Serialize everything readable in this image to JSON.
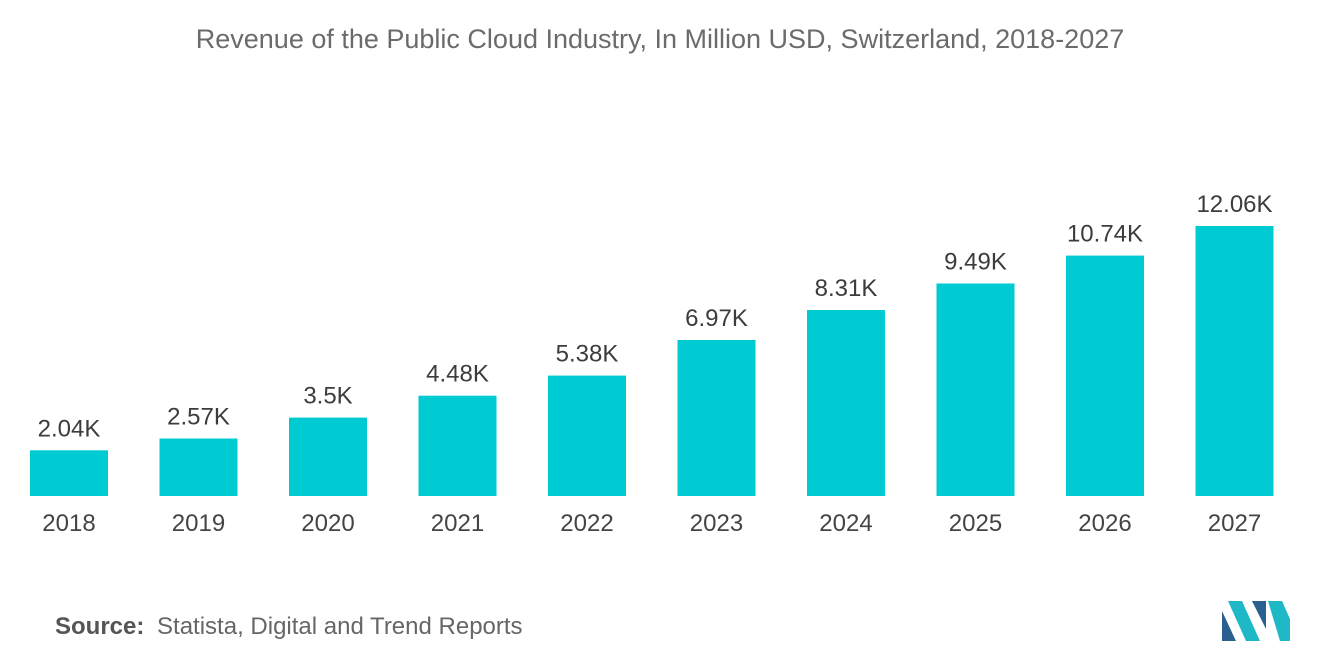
{
  "chart_data": {
    "type": "bar",
    "title": "Revenue of the Public Cloud Industry, In Million USD, Switzerland, 2018-2027",
    "categories": [
      "2018",
      "2019",
      "2020",
      "2021",
      "2022",
      "2023",
      "2024",
      "2025",
      "2026",
      "2027"
    ],
    "values": [
      2.04,
      2.57,
      3.5,
      4.48,
      5.38,
      6.97,
      8.31,
      9.49,
      10.74,
      12.06
    ],
    "value_labels": [
      "2.04K",
      "2.57K",
      "3.5K",
      "4.48K",
      "5.38K",
      "6.97K",
      "8.31K",
      "9.49K",
      "10.74K",
      "12.06K"
    ],
    "value_unit": "thousand million USD",
    "xlabel": "",
    "ylabel": "",
    "ylim": [
      0,
      12.06
    ],
    "grid": false,
    "legend": "none",
    "bar_color": "#00cbd2"
  },
  "source": {
    "label": "Source:",
    "text": "Statista, Digital and Trend Reports"
  },
  "logo": {
    "icon": "mordor-intelligence-logo-icon",
    "colors": [
      "#2a5f8f",
      "#1fb8c6"
    ]
  }
}
